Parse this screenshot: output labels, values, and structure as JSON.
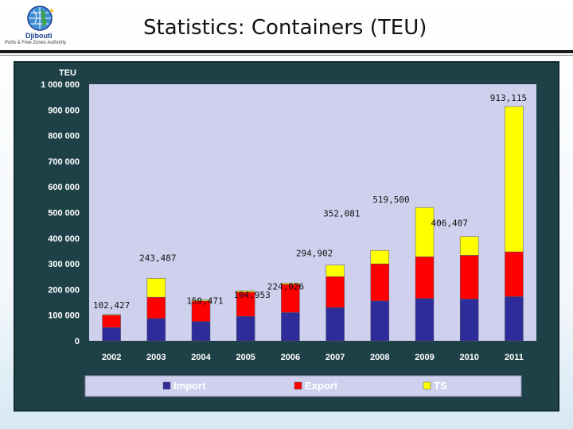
{
  "header": {
    "title": "Statistics: Containers (TEU)",
    "logo_text": "Djibouti",
    "logo_tagline": "Ports & Free Zones Authority"
  },
  "colors": {
    "import": "#2e2c9a",
    "export": "#ff0000",
    "ts": "#ffff00",
    "plot_bg": "#cfd0ee",
    "frame_bg": "#1e4148"
  },
  "chart_data": {
    "type": "bar",
    "stacked": true,
    "title": "",
    "ylabel": "TEU",
    "xlabel": "",
    "ylim": [
      0,
      1000000
    ],
    "yticks": [
      0,
      100000,
      200000,
      300000,
      400000,
      500000,
      600000,
      700000,
      800000,
      900000,
      1000000
    ],
    "ytick_labels": [
      "0",
      "100 000",
      "200 000",
      "300 000",
      "400 000",
      "500 000",
      "600 000",
      "700 000",
      "800 000",
      "900 000",
      "1 000 000"
    ],
    "categories": [
      "2002",
      "2003",
      "2004",
      "2005",
      "2006",
      "2007",
      "2008",
      "2009",
      "2010",
      "2011"
    ],
    "series": [
      {
        "name": "Import",
        "values": [
          52000,
          87000,
          75000,
          95000,
          110000,
          130000,
          155000,
          165000,
          163000,
          172000
        ]
      },
      {
        "name": "Export",
        "values": [
          48000,
          83000,
          80000,
          95000,
          110000,
          120000,
          145000,
          163000,
          170000,
          175000
        ]
      },
      {
        "name": "TS",
        "values": [
          2427,
          73487,
          4471,
          4953,
          4926,
          44902,
          52081,
          191500,
          73407,
          566115
        ]
      }
    ],
    "data_labels": [
      "102,427",
      "243,487",
      "159,471",
      "194,953",
      "224,926",
      "294,902",
      "352,081",
      "519,500",
      "406,407",
      "913,115"
    ],
    "legend_position": "bottom",
    "grid": false
  }
}
